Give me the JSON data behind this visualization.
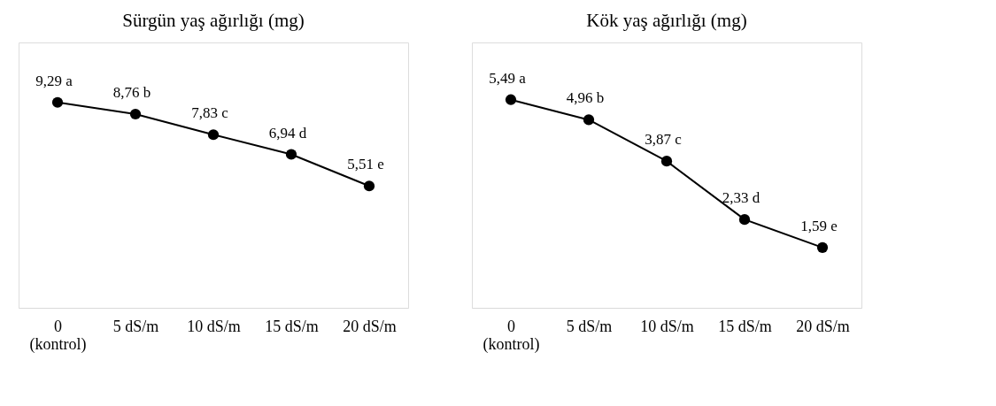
{
  "chart_data": [
    {
      "type": "line",
      "title": "Sürgün yaş ağırlığı (mg)",
      "categories": [
        "0\n(kontrol)",
        "5 dS/m",
        "10 dS/m",
        "15 dS/m",
        "20 dS/m"
      ],
      "ylim": [
        0,
        12
      ],
      "tick_labels": "x",
      "grid": false,
      "marker": "circle",
      "line_style": "solid",
      "series": [
        {
          "color": "#000000",
          "values": [
            9.29,
            8.76,
            7.83,
            6.94,
            5.51
          ],
          "value_labels": [
            "9,29 a",
            "8,76 b",
            "7,83 c",
            "6,94 d",
            "5,51 e"
          ]
        }
      ]
    },
    {
      "type": "line",
      "title": "Kök yaş ağırlığı (mg)",
      "categories": [
        "0\n(kontrol)",
        "5 dS/m",
        "10 dS/m",
        "15 dS/m",
        "20 dS/m"
      ],
      "ylim": [
        0,
        7
      ],
      "tick_labels": "x",
      "grid": false,
      "marker": "circle",
      "line_style": "solid",
      "series": [
        {
          "color": "#000000",
          "values": [
            5.49,
            4.96,
            3.87,
            2.33,
            1.59
          ],
          "value_labels": [
            "5,49 a",
            "4,96 b",
            "3,87 c",
            "2,33 d",
            "1,59 e"
          ]
        }
      ]
    }
  ]
}
